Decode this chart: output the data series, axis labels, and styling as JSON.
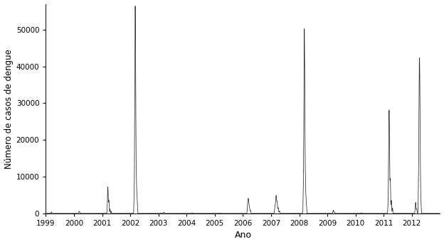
{
  "xlabel": "Ano",
  "ylabel": "Número de casos de dengue",
  "xlim": [
    1999.0,
    2013.0
  ],
  "ylim": [
    0,
    57000
  ],
  "yticks": [
    0,
    10000,
    20000,
    30000,
    40000,
    50000
  ],
  "xticks": [
    1999,
    2000,
    2001,
    2002,
    2003,
    2004,
    2005,
    2006,
    2007,
    2008,
    2009,
    2010,
    2011,
    2012
  ],
  "line_color": "#2a2a2a",
  "line_width": 0.55,
  "background_color": "#ffffff"
}
